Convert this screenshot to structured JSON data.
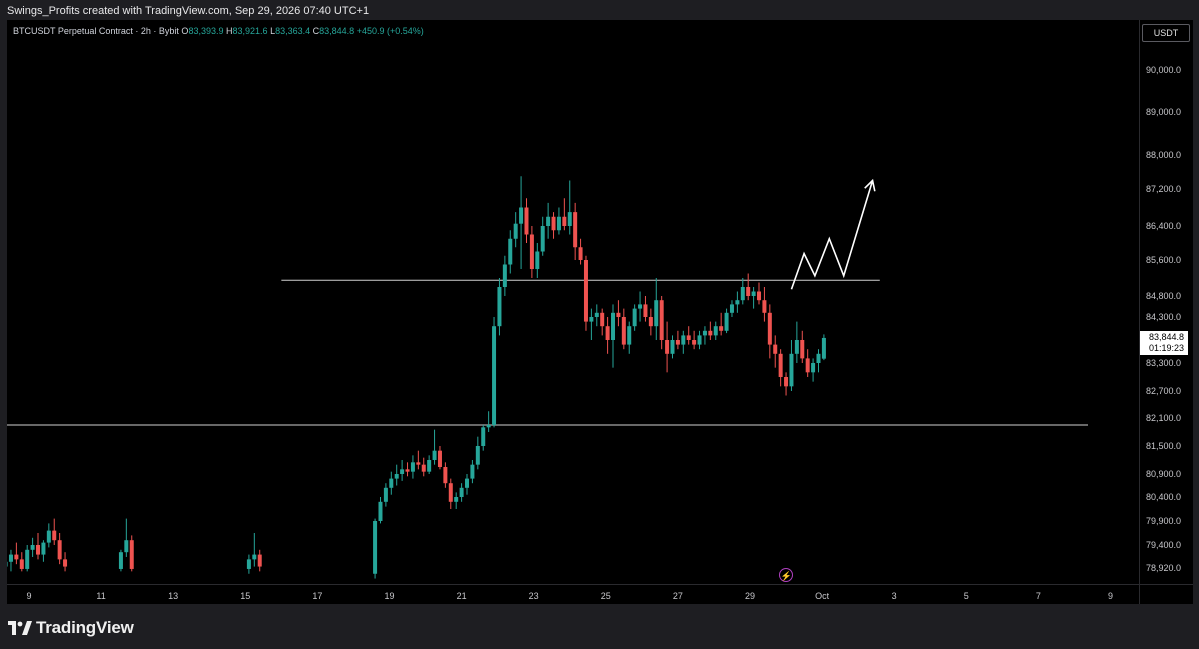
{
  "header": {
    "text": "Swings_Profits created with TradingView.com, Sep 29, 2026 07:40 UTC+1"
  },
  "legend": {
    "symbol": "BTCUSDT Perpetual Contract · 2h · Bybit",
    "o_label": "O",
    "o_value": "83,393.9",
    "h_label": "H",
    "h_value": "83,921.6",
    "l_label": "L",
    "l_value": "83,363.4",
    "c_label": "C",
    "c_value": "83,844.8",
    "change": "+450.9 (+0.54%)"
  },
  "price_axis": {
    "currency": "USDT",
    "ticks": [
      "90,000.0",
      "89,000.0",
      "88,000.0",
      "87,200.0",
      "86,400.0",
      "85,600.0",
      "84,800.0",
      "84,300.0",
      "83,300.0",
      "82,700.0",
      "82,100.0",
      "81,500.0",
      "80,900.0",
      "80,400.0",
      "79,900.0",
      "79,400.0",
      "78,920.0"
    ],
    "last_price": "83,844.8",
    "countdown": "01:19:23"
  },
  "time_axis": {
    "ticks": [
      "9",
      "11",
      "13",
      "15",
      "17",
      "19",
      "21",
      "23",
      "25",
      "27",
      "29",
      "Oct",
      "3",
      "5",
      "7",
      "9"
    ]
  },
  "footer": {
    "brand": "TradingView"
  },
  "colors": {
    "up": "#26a69a",
    "down": "#ef5350",
    "level_line": "#d0d0d0",
    "projection": "#ffffff",
    "event": "#e040fb"
  },
  "icons": {
    "event": "lightning-icon",
    "brand": "tradingview-logo-icon"
  },
  "chart_data": {
    "type": "candlestick",
    "timeframe": "2h",
    "ylim": [
      78700,
      90500
    ],
    "levels": [
      85150,
      81950
    ],
    "projection": [
      [
        30.15,
        84950
      ],
      [
        30.5,
        85750
      ],
      [
        30.8,
        85250
      ],
      [
        31.2,
        86100
      ],
      [
        31.6,
        85250
      ],
      [
        32.4,
        87400
      ]
    ],
    "events": [
      {
        "x": 30.0,
        "icon": "lightning-icon"
      }
    ],
    "candles": [
      [
        8.2,
        79000,
        79150,
        78800,
        78950
      ],
      [
        8.35,
        78950,
        79100,
        78750,
        79050
      ],
      [
        8.5,
        79050,
        79300,
        78850,
        79200
      ],
      [
        8.65,
        79200,
        79450,
        79000,
        79100
      ],
      [
        8.8,
        79100,
        79250,
        78850,
        78900
      ],
      [
        8.95,
        78900,
        79400,
        78850,
        79300
      ],
      [
        9.1,
        79300,
        79550,
        79150,
        79400
      ],
      [
        9.25,
        79400,
        79650,
        79100,
        79200
      ],
      [
        9.4,
        79200,
        79500,
        79050,
        79450
      ],
      [
        9.55,
        79450,
        79850,
        79350,
        79700
      ],
      [
        9.7,
        79700,
        79950,
        79400,
        79500
      ],
      [
        9.85,
        79500,
        79650,
        79000,
        79100
      ],
      [
        10.0,
        79100,
        79250,
        78850,
        78950
      ],
      [
        11.55,
        78900,
        79300,
        78850,
        79250
      ],
      [
        11.7,
        79250,
        79950,
        79150,
        79500
      ],
      [
        11.85,
        79500,
        79600,
        78850,
        78900
      ],
      [
        15.1,
        78900,
        79200,
        78800,
        79100
      ],
      [
        15.25,
        79100,
        79650,
        78950,
        79200
      ],
      [
        15.4,
        79200,
        79300,
        78850,
        78950
      ],
      [
        18.6,
        78800,
        79950,
        78700,
        79900
      ],
      [
        18.75,
        79900,
        80400,
        79850,
        80300
      ],
      [
        18.9,
        80300,
        80700,
        80200,
        80600
      ],
      [
        19.05,
        80600,
        80950,
        80450,
        80800
      ],
      [
        19.2,
        80800,
        81100,
        80650,
        80900
      ],
      [
        19.35,
        80900,
        81200,
        80750,
        81000
      ],
      [
        19.5,
        81000,
        81150,
        80850,
        80950
      ],
      [
        19.65,
        80950,
        81300,
        80800,
        81150
      ],
      [
        19.8,
        81150,
        81400,
        81000,
        81100
      ],
      [
        19.95,
        81100,
        81250,
        80850,
        80950
      ],
      [
        20.1,
        80950,
        81300,
        80900,
        81200
      ],
      [
        20.25,
        81200,
        81850,
        81100,
        81400
      ],
      [
        20.4,
        81400,
        81500,
        81000,
        81050
      ],
      [
        20.55,
        81050,
        81150,
        80600,
        80700
      ],
      [
        20.7,
        80700,
        80800,
        80150,
        80300
      ],
      [
        20.85,
        80300,
        80500,
        80150,
        80400
      ],
      [
        21.0,
        80400,
        80700,
        80300,
        80600
      ],
      [
        21.15,
        80600,
        80900,
        80450,
        80800
      ],
      [
        21.3,
        80800,
        81200,
        80700,
        81100
      ],
      [
        21.45,
        81100,
        81700,
        81000,
        81500
      ],
      [
        21.6,
        81500,
        81950,
        81400,
        81900
      ],
      [
        21.75,
        81900,
        82250,
        81800,
        81950
      ],
      [
        21.9,
        81950,
        84300,
        81900,
        84100
      ],
      [
        22.05,
        84100,
        85200,
        83900,
        85000
      ],
      [
        22.2,
        85000,
        85700,
        84800,
        85500
      ],
      [
        22.35,
        85500,
        86300,
        85300,
        86100
      ],
      [
        22.5,
        86100,
        86700,
        85900,
        86450
      ],
      [
        22.65,
        86450,
        87500,
        85400,
        86800
      ],
      [
        22.8,
        86800,
        87000,
        86000,
        86200
      ],
      [
        22.95,
        86200,
        86400,
        85200,
        85400
      ],
      [
        23.1,
        85400,
        86000,
        85200,
        85800
      ],
      [
        23.25,
        85800,
        86600,
        85700,
        86400
      ],
      [
        23.4,
        86400,
        86900,
        86100,
        86600
      ],
      [
        23.55,
        86600,
        86700,
        86100,
        86300
      ],
      [
        23.7,
        86300,
        86800,
        86200,
        86600
      ],
      [
        23.85,
        86600,
        87000,
        86300,
        86400
      ],
      [
        24.0,
        86400,
        87400,
        86200,
        86700
      ],
      [
        24.15,
        86700,
        86900,
        85600,
        85900
      ],
      [
        24.3,
        85900,
        86100,
        85500,
        85600
      ],
      [
        24.45,
        85600,
        85700,
        84000,
        84200
      ],
      [
        24.6,
        84200,
        84500,
        83800,
        84300
      ],
      [
        24.75,
        84300,
        84600,
        84100,
        84400
      ],
      [
        24.9,
        84400,
        84500,
        83900,
        84100
      ],
      [
        25.05,
        84100,
        84300,
        83500,
        83800
      ],
      [
        25.2,
        83800,
        84600,
        83200,
        84400
      ],
      [
        25.35,
        84400,
        84700,
        84100,
        84300
      ],
      [
        25.5,
        84300,
        84500,
        83600,
        83700
      ],
      [
        25.65,
        83700,
        84200,
        83500,
        84100
      ],
      [
        25.8,
        84100,
        84600,
        84000,
        84500
      ],
      [
        25.95,
        84500,
        84900,
        84200,
        84600
      ],
      [
        26.1,
        84600,
        84800,
        84200,
        84300
      ],
      [
        26.25,
        84300,
        84500,
        83900,
        84100
      ],
      [
        26.4,
        84100,
        85200,
        83800,
        84700
      ],
      [
        26.55,
        84700,
        84800,
        83600,
        83800
      ],
      [
        26.7,
        83800,
        84200,
        83100,
        83500
      ],
      [
        26.85,
        83500,
        83900,
        83400,
        83800
      ],
      [
        27.0,
        83800,
        84000,
        83600,
        83700
      ],
      [
        27.15,
        83700,
        84000,
        83500,
        83900
      ],
      [
        27.3,
        83900,
        84100,
        83700,
        83800
      ],
      [
        27.45,
        83800,
        84000,
        83600,
        83700
      ],
      [
        27.6,
        83700,
        84000,
        83600,
        83900
      ],
      [
        27.75,
        83900,
        84100,
        83700,
        84000
      ],
      [
        27.9,
        84000,
        84200,
        83800,
        83900
      ],
      [
        28.05,
        83900,
        84200,
        83800,
        84100
      ],
      [
        28.2,
        84100,
        84400,
        83900,
        84000
      ],
      [
        28.35,
        84000,
        84500,
        83950,
        84400
      ],
      [
        28.5,
        84400,
        84700,
        84300,
        84600
      ],
      [
        28.65,
        84600,
        84900,
        84400,
        84700
      ],
      [
        28.8,
        84700,
        85200,
        84600,
        85000
      ],
      [
        28.95,
        85000,
        85300,
        84700,
        84800
      ],
      [
        29.1,
        84800,
        85000,
        84500,
        84900
      ],
      [
        29.25,
        84900,
        85100,
        84600,
        84700
      ],
      [
        29.4,
        84700,
        85000,
        84200,
        84400
      ],
      [
        29.55,
        84400,
        84600,
        83400,
        83700
      ],
      [
        29.7,
        83700,
        83900,
        83200,
        83500
      ],
      [
        29.85,
        83500,
        83600,
        82800,
        83000
      ],
      [
        30.0,
        83000,
        83100,
        82600,
        82800
      ],
      [
        30.15,
        82800,
        83800,
        82700,
        83500
      ],
      [
        30.3,
        83500,
        84200,
        83300,
        83800
      ],
      [
        30.45,
        83800,
        84000,
        83300,
        83400
      ],
      [
        30.6,
        83400,
        83600,
        83000,
        83100
      ],
      [
        30.75,
        83100,
        83400,
        82900,
        83300
      ],
      [
        30.9,
        83300,
        83600,
        83100,
        83500
      ],
      [
        31.05,
        83394,
        83922,
        83363,
        83845
      ]
    ]
  }
}
